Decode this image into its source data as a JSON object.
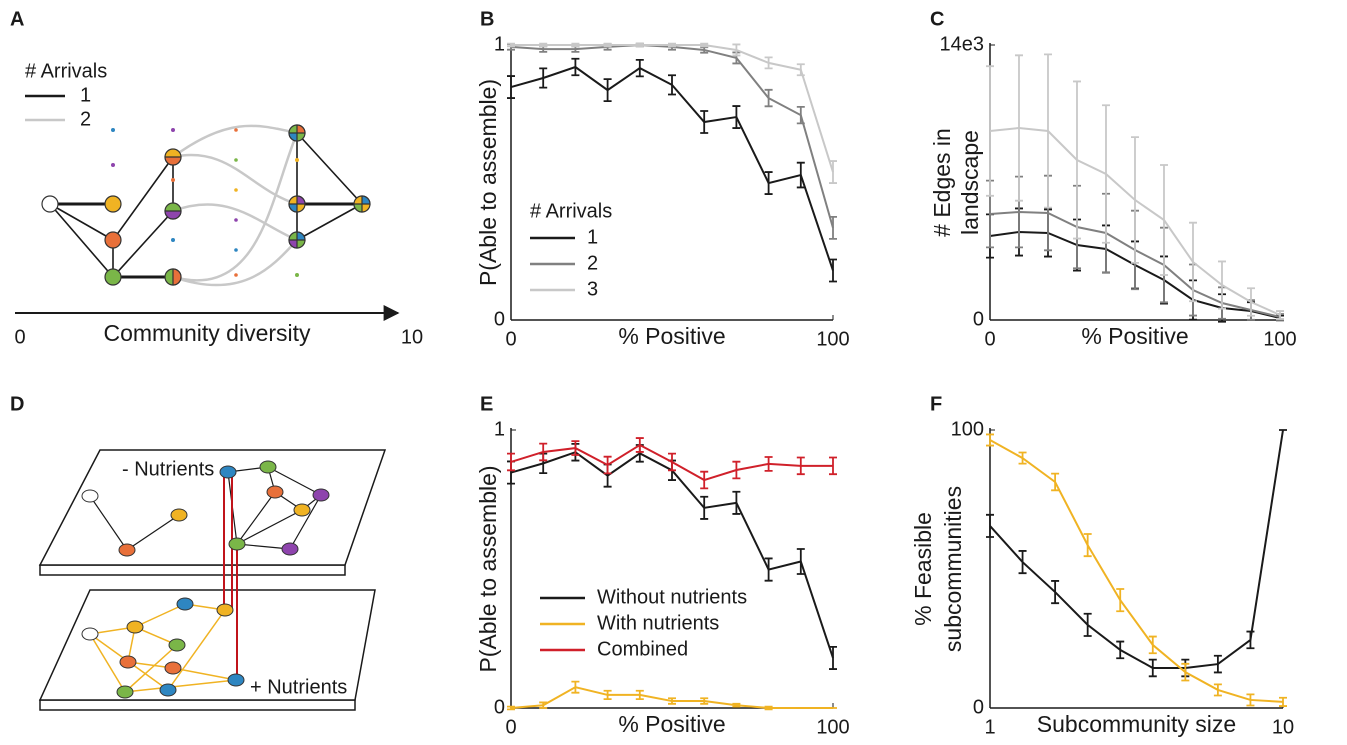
{
  "diagram_a": {
    "panel": "A",
    "legend_title": "# Arrivals",
    "legend": [
      "1",
      "2"
    ],
    "axis_label": "Community diversity",
    "axis_start": "0",
    "axis_end": "10"
  },
  "diagram_d": {
    "panel": "D",
    "top_label": "- Nutrients",
    "bottom_label": "+ Nutrients"
  },
  "chart_data": [
    {
      "type": "line",
      "panel": "B",
      "xlabel": "% Positive",
      "ylabel": [
        "P(Able to assemble)"
      ],
      "legend_title": "# Arrivals",
      "x": [
        0,
        10,
        20,
        30,
        40,
        50,
        60,
        70,
        80,
        90,
        100
      ],
      "xlim": [
        0,
        100
      ],
      "xticks": [
        0,
        100
      ],
      "ylim": [
        0,
        1
      ],
      "yticks": [
        0,
        1
      ],
      "series": [
        {
          "name": "1",
          "color": "#1a1a1a",
          "values": [
            0.847,
            0.88,
            0.92,
            0.836,
            0.916,
            0.855,
            0.72,
            0.738,
            0.498,
            0.527,
            0.18
          ],
          "errors": [
            0.04,
            0.035,
            0.03,
            0.04,
            0.03,
            0.035,
            0.04,
            0.04,
            0.04,
            0.045,
            0.04
          ]
        },
        {
          "name": "2",
          "color": "#808080",
          "values": [
            0.993,
            0.985,
            0.985,
            0.993,
            1.0,
            0.993,
            0.982,
            0.953,
            0.807,
            0.745,
            0.335
          ],
          "errors": [
            0.01,
            0.01,
            0.01,
            0.01,
            0.005,
            0.01,
            0.01,
            0.02,
            0.03,
            0.03,
            0.04
          ]
        },
        {
          "name": "3",
          "color": "#c8c8c8",
          "values": [
            1.0,
            1.0,
            1.0,
            1.0,
            1.0,
            1.0,
            1.0,
            0.982,
            0.935,
            0.91,
            0.538
          ],
          "errors": [
            0.005,
            0.005,
            0.005,
            0.005,
            0.005,
            0.005,
            0.005,
            0.02,
            0.02,
            0.02,
            0.04
          ]
        }
      ]
    },
    {
      "type": "line",
      "panel": "C",
      "xlabel": "% Positive",
      "ylabel": [
        "# Edges in",
        "landscape"
      ],
      "x": [
        0,
        10,
        20,
        30,
        40,
        50,
        60,
        70,
        80,
        90,
        100
      ],
      "xlim": [
        0,
        100
      ],
      "xticks": [
        0,
        100
      ],
      "ylim": [
        0,
        14000
      ],
      "yticks": [
        0,
        {
          "value": 14000,
          "label": "14e3"
        }
      ],
      "series": [
        {
          "color": "#1a1a1a",
          "values": [
            4276,
            4480,
            4429,
            3818,
            3615,
            2800,
            2036,
            1018,
            611,
            458,
            102
          ],
          "errors": [
            1100,
            1200,
            1200,
            1300,
            1200,
            1200,
            1200,
            1000,
            700,
            450,
            120
          ]
        },
        {
          "color": "#808080",
          "values": [
            5396,
            5498,
            5447,
            4735,
            4429,
            3564,
            2800,
            1527,
            865,
            509,
            153
          ],
          "errors": [
            1700,
            1800,
            1900,
            2100,
            2000,
            2000,
            1900,
            1300,
            800,
            500,
            150
          ]
        },
        {
          "color": "#c8c8c8",
          "values": [
            9622,
            9775,
            9622,
            8145,
            7432,
            6109,
            5091,
            2953,
            1782,
            916,
            255
          ],
          "errors": [
            3300,
            3700,
            3900,
            4000,
            3500,
            3200,
            2800,
            2000,
            1200,
            700,
            200
          ]
        }
      ]
    },
    {
      "type": "line",
      "panel": "E",
      "xlabel": "% Positive",
      "ylabel": [
        "P(Able to assemble)"
      ],
      "x": [
        0,
        10,
        20,
        30,
        40,
        50,
        60,
        70,
        80,
        90,
        100
      ],
      "xlim": [
        0,
        100
      ],
      "xticks": [
        0,
        100
      ],
      "ylim": [
        0,
        1
      ],
      "yticks": [
        0,
        1
      ],
      "series": [
        {
          "name": "Without nutrients",
          "color": "#1a1a1a",
          "values": [
            0.847,
            0.88,
            0.92,
            0.836,
            0.916,
            0.855,
            0.72,
            0.738,
            0.498,
            0.527,
            0.18
          ],
          "errors": [
            0.04,
            0.035,
            0.03,
            0.04,
            0.03,
            0.035,
            0.04,
            0.04,
            0.04,
            0.045,
            0.04
          ]
        },
        {
          "name": "With nutrients",
          "color": "#f0b323",
          "values": [
            0,
            0.01,
            0.075,
            0.047,
            0.047,
            0.025,
            0.025,
            0.01,
            0,
            0,
            0
          ],
          "errors": [
            0.005,
            0.01,
            0.02,
            0.015,
            0.015,
            0.01,
            0.01,
            0.005,
            0.005,
            0,
            0
          ]
        },
        {
          "name": "Combined",
          "color": "#d0202a",
          "values": [
            0.885,
            0.921,
            0.935,
            0.874,
            0.946,
            0.885,
            0.82,
            0.856,
            0.878,
            0.871,
            0.871
          ],
          "errors": [
            0.03,
            0.03,
            0.025,
            0.03,
            0.025,
            0.03,
            0.03,
            0.03,
            0.025,
            0.03,
            0.03
          ]
        }
      ]
    },
    {
      "type": "line",
      "panel": "F",
      "xlabel": "Subcommunity size",
      "ylabel": [
        "% Feasible",
        "subcommunities"
      ],
      "x": [
        1,
        2,
        3,
        4,
        5,
        6,
        7,
        8,
        9,
        10
      ],
      "xlim": [
        1,
        10
      ],
      "xticks": [
        1,
        10
      ],
      "ylim": [
        0,
        100
      ],
      "yticks": [
        0,
        100
      ],
      "series": [
        {
          "color": "#1a1a1a",
          "values": [
            65.5,
            52.5,
            41.7,
            29.9,
            20.9,
            14.4,
            14.4,
            15.8,
            24.5,
            100
          ],
          "errors": [
            4,
            4,
            4,
            4,
            3,
            3,
            3,
            3,
            3,
            0
          ]
        },
        {
          "color": "#f0b323",
          "values": [
            96.4,
            89.9,
            81.3,
            58.6,
            38.8,
            22.7,
            12.9,
            6.5,
            2.9,
            2.2
          ],
          "errors": [
            2,
            2,
            3,
            4,
            4,
            3,
            3,
            2,
            2,
            1.5
          ]
        }
      ]
    }
  ]
}
